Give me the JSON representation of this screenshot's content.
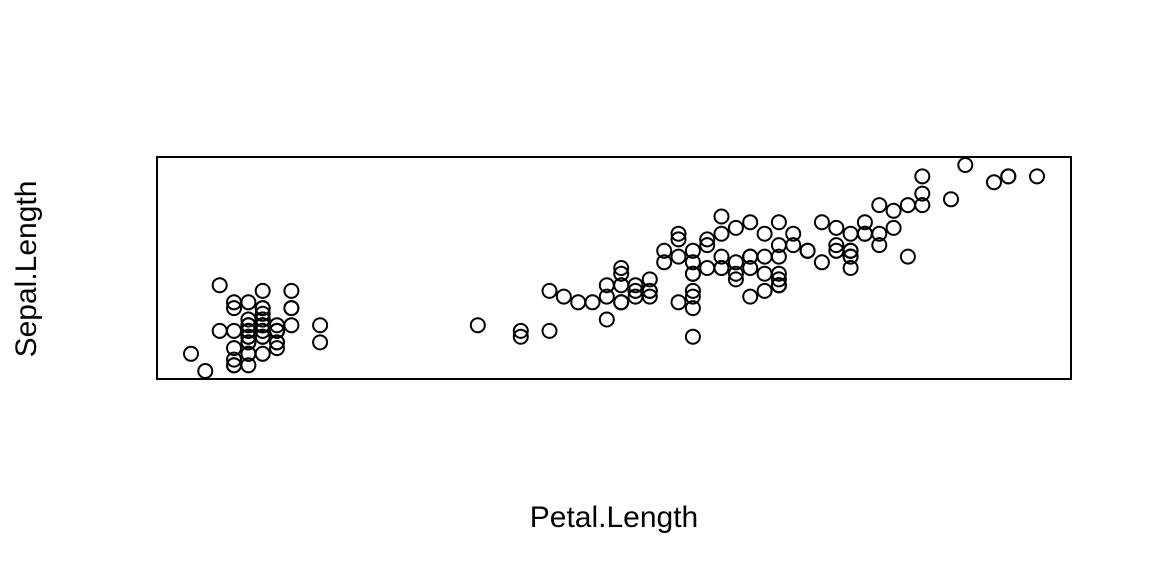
{
  "chart_data": {
    "type": "scatter",
    "xlabel": "Petal.Length",
    "ylabel": "Sepal.Length",
    "xlim": [
      1.0,
      6.9
    ],
    "ylim": [
      4.3,
      7.9
    ],
    "axes_shown": false,
    "marker": "open-circle",
    "points": [
      [
        1.4,
        5.1
      ],
      [
        1.4,
        4.9
      ],
      [
        1.3,
        4.7
      ],
      [
        1.5,
        4.6
      ],
      [
        1.4,
        5.0
      ],
      [
        1.7,
        5.4
      ],
      [
        1.4,
        4.6
      ],
      [
        1.5,
        5.0
      ],
      [
        1.4,
        4.4
      ],
      [
        1.5,
        4.9
      ],
      [
        1.5,
        5.4
      ],
      [
        1.6,
        4.8
      ],
      [
        1.4,
        4.8
      ],
      [
        1.1,
        4.3
      ],
      [
        1.2,
        5.8
      ],
      [
        1.5,
        5.7
      ],
      [
        1.3,
        5.4
      ],
      [
        1.4,
        5.1
      ],
      [
        1.7,
        5.7
      ],
      [
        1.5,
        5.1
      ],
      [
        1.7,
        5.4
      ],
      [
        1.5,
        5.1
      ],
      [
        1.0,
        4.6
      ],
      [
        1.7,
        5.1
      ],
      [
        1.9,
        4.8
      ],
      [
        1.6,
        5.0
      ],
      [
        1.6,
        5.0
      ],
      [
        1.5,
        5.2
      ],
      [
        1.4,
        5.2
      ],
      [
        1.6,
        4.7
      ],
      [
        1.6,
        4.8
      ],
      [
        1.5,
        5.4
      ],
      [
        1.5,
        5.2
      ],
      [
        1.4,
        5.5
      ],
      [
        1.5,
        4.9
      ],
      [
        1.2,
        5.0
      ],
      [
        1.3,
        5.5
      ],
      [
        1.4,
        4.9
      ],
      [
        1.3,
        4.4
      ],
      [
        1.5,
        5.1
      ],
      [
        1.3,
        5.0
      ],
      [
        1.3,
        4.5
      ],
      [
        1.3,
        4.4
      ],
      [
        1.6,
        5.0
      ],
      [
        1.9,
        5.1
      ],
      [
        1.4,
        4.8
      ],
      [
        1.6,
        5.1
      ],
      [
        1.4,
        4.6
      ],
      [
        1.5,
        5.3
      ],
      [
        1.4,
        5.0
      ],
      [
        4.7,
        7.0
      ],
      [
        4.5,
        6.4
      ],
      [
        4.9,
        6.9
      ],
      [
        4.0,
        5.5
      ],
      [
        4.6,
        6.5
      ],
      [
        4.5,
        5.7
      ],
      [
        4.7,
        6.3
      ],
      [
        3.3,
        4.9
      ],
      [
        4.6,
        6.6
      ],
      [
        3.9,
        5.2
      ],
      [
        3.5,
        5.0
      ],
      [
        4.2,
        5.9
      ],
      [
        4.0,
        6.0
      ],
      [
        4.7,
        6.1
      ],
      [
        3.6,
        5.6
      ],
      [
        4.4,
        6.7
      ],
      [
        4.5,
        5.6
      ],
      [
        4.1,
        5.8
      ],
      [
        4.5,
        6.2
      ],
      [
        3.9,
        5.6
      ],
      [
        4.8,
        5.9
      ],
      [
        4.0,
        6.1
      ],
      [
        4.9,
        6.3
      ],
      [
        4.7,
        6.1
      ],
      [
        4.3,
        6.4
      ],
      [
        4.4,
        6.6
      ],
      [
        4.8,
        6.8
      ],
      [
        5.0,
        6.7
      ],
      [
        4.5,
        6.0
      ],
      [
        3.5,
        5.7
      ],
      [
        3.8,
        5.5
      ],
      [
        3.7,
        5.5
      ],
      [
        3.9,
        5.8
      ],
      [
        5.1,
        6.0
      ],
      [
        4.5,
        5.4
      ],
      [
        4.5,
        6.0
      ],
      [
        4.7,
        6.7
      ],
      [
        4.4,
        6.3
      ],
      [
        4.1,
        5.6
      ],
      [
        4.0,
        5.5
      ],
      [
        4.4,
        5.5
      ],
      [
        4.6,
        6.1
      ],
      [
        4.0,
        5.8
      ],
      [
        3.3,
        5.0
      ],
      [
        4.2,
        5.6
      ],
      [
        4.2,
        5.7
      ],
      [
        4.2,
        5.7
      ],
      [
        4.3,
        6.2
      ],
      [
        3.0,
        5.1
      ],
      [
        4.1,
        5.7
      ],
      [
        6.0,
        6.3
      ],
      [
        5.1,
        5.8
      ],
      [
        5.9,
        7.1
      ],
      [
        5.6,
        6.3
      ],
      [
        5.8,
        6.5
      ],
      [
        6.6,
        7.6
      ],
      [
        4.5,
        4.9
      ],
      [
        6.3,
        7.3
      ],
      [
        5.8,
        6.7
      ],
      [
        6.1,
        7.2
      ],
      [
        5.1,
        6.5
      ],
      [
        5.3,
        6.4
      ],
      [
        5.5,
        6.8
      ],
      [
        5.0,
        5.7
      ],
      [
        5.1,
        5.8
      ],
      [
        5.3,
        6.4
      ],
      [
        5.5,
        6.5
      ],
      [
        6.7,
        7.7
      ],
      [
        6.9,
        7.7
      ],
      [
        5.0,
        6.0
      ],
      [
        5.7,
        6.9
      ],
      [
        4.9,
        5.6
      ],
      [
        6.7,
        7.7
      ],
      [
        4.9,
        6.3
      ],
      [
        5.7,
        6.7
      ],
      [
        6.0,
        7.2
      ],
      [
        4.8,
        6.2
      ],
      [
        4.9,
        6.1
      ],
      [
        5.6,
        6.4
      ],
      [
        5.8,
        7.2
      ],
      [
        6.1,
        7.4
      ],
      [
        6.4,
        7.9
      ],
      [
        5.6,
        6.4
      ],
      [
        5.1,
        6.3
      ],
      [
        5.6,
        6.1
      ],
      [
        6.1,
        7.7
      ],
      [
        5.6,
        6.3
      ],
      [
        5.5,
        6.4
      ],
      [
        4.8,
        6.0
      ],
      [
        5.4,
        6.9
      ],
      [
        5.6,
        6.7
      ],
      [
        5.1,
        6.9
      ],
      [
        5.1,
        5.8
      ],
      [
        5.9,
        6.8
      ],
      [
        5.7,
        6.7
      ],
      [
        5.2,
        6.7
      ],
      [
        5.0,
        6.3
      ],
      [
        5.2,
        6.5
      ],
      [
        5.4,
        6.2
      ],
      [
        5.1,
        5.9
      ]
    ]
  }
}
